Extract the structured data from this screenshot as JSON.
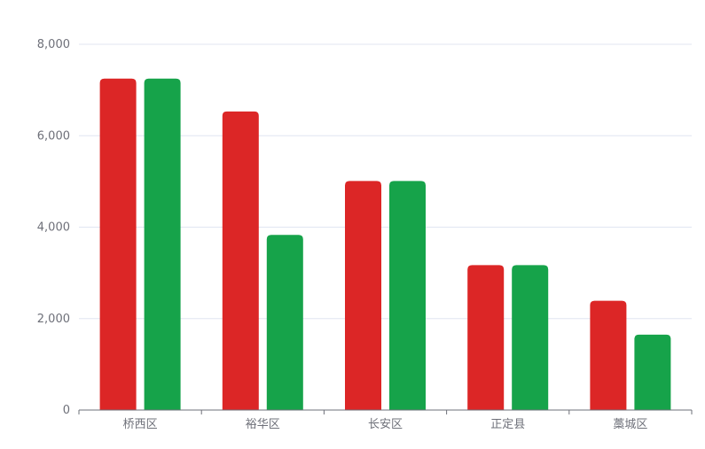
{
  "chart_data": {
    "type": "bar",
    "categories": [
      "桥西区",
      "裕华区",
      "长安区",
      "正定县",
      "藁城区"
    ],
    "series": [
      {
        "color": "#dc2626",
        "values": [
          7250,
          6530,
          5010,
          3170,
          2390
        ]
      },
      {
        "color": "#16a34a",
        "values": [
          7250,
          3830,
          5010,
          3170,
          1650
        ]
      }
    ],
    "ylim": [
      0,
      8000
    ],
    "yticks": [
      0,
      2000,
      4000,
      6000,
      8000
    ],
    "ytick_labels": [
      "0",
      "2,000",
      "4,000",
      "6,000",
      "8,000"
    ],
    "grid": true,
    "legend": "none",
    "title": "",
    "xlabel": "",
    "ylabel": ""
  }
}
